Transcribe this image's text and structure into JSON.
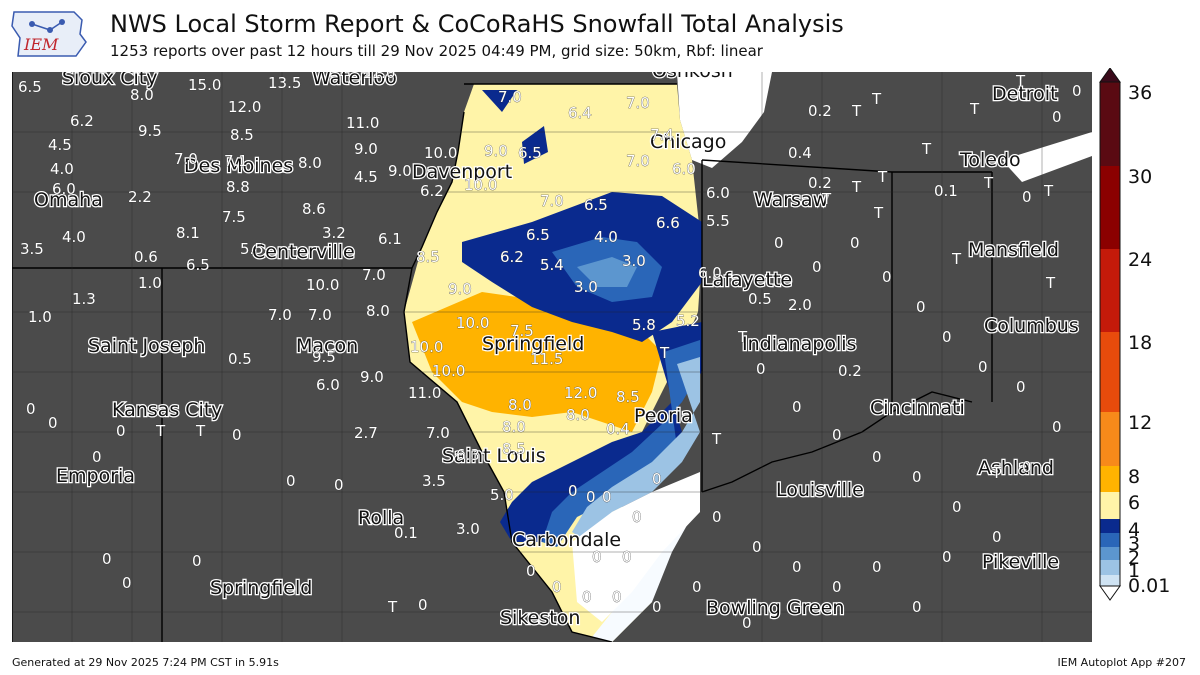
{
  "header": {
    "logo_text": "IEM",
    "title": "NWS Local Storm Report & CoCoRaHS Snowfall Total Analysis",
    "subtitle": "1253 reports over past 12 hours till 29 Nov 2025 04:49 PM, grid size: 50km, Rbf: linear"
  },
  "footer": {
    "generated": "Generated at 29 Nov 2025 7:24 PM CST in 5.91s",
    "app": "IEM Autoplot App #207"
  },
  "colorbar": {
    "ticks": [
      "36",
      "30",
      "24",
      "18",
      "12",
      "8",
      "6",
      "4",
      "3",
      "2",
      "1",
      "0.01"
    ],
    "colors": [
      "#3a0a1a",
      "#5a0a12",
      "#8b0000",
      "#c41a0a",
      "#e84b0c",
      "#f78a1a",
      "#ffb300",
      "#fff4a8",
      "#0a2a8e",
      "#2a66b8",
      "#5c96cf",
      "#9cc3e4",
      "#cfe3f3",
      "#f7fbff"
    ]
  },
  "map": {
    "cities": [
      "Sioux City",
      "Waterloo",
      "Oshkosh",
      "Detroit",
      "Omaha",
      "Des Moines",
      "Davenport",
      "Chicago",
      "Warsaw",
      "Toledo",
      "Centerville",
      "Mansfield",
      "Lafayette",
      "Saint Joseph",
      "Macon",
      "Springfield",
      "Indianapolis",
      "Columbus",
      "Kansas City",
      "Cincinnati",
      "Emporia",
      "Saint Louis",
      "Ashland",
      "Rolla",
      "Carbondale",
      "Louisville",
      "Pikeville",
      "Sikeston",
      "Bowling Green",
      "Springfield",
      "Peoria"
    ],
    "reports": [
      "6.5",
      "8.0",
      "15.0",
      "12.0",
      "13.5",
      "11.0",
      "6.2",
      "9.5",
      "8.5",
      "11.0",
      "4.5",
      "7.0",
      "7.1",
      "8.0",
      "9.0",
      "4.0",
      "6.0",
      "2.2",
      "8.8",
      "4.5",
      "9.0",
      "10.0",
      "9.0",
      "6.2",
      "10.0",
      "7.5",
      "8.6",
      "8.1",
      "3.2",
      "4.0",
      "3.5",
      "0.6",
      "6.5",
      "5.5",
      "6.1",
      "1.0",
      "8.5",
      "10.0",
      "7.0",
      "1.3",
      "7.0",
      "7.0",
      "8.0",
      "1.0",
      "9.0",
      "10.0",
      "7.5",
      "10.0",
      "0.5",
      "9.5",
      "6.0",
      "9.0",
      "10.0",
      "11.5",
      "11.0",
      "12.0",
      "8.5",
      "8.0",
      "8.0",
      "8.0",
      "2.7",
      "7.0",
      "6.3",
      "8.5",
      "3.5",
      "5.0",
      "0.1",
      "3.0",
      "7.0",
      "6.4",
      "7.0",
      "7.4",
      "6.5",
      "7.0",
      "6.0",
      "7.0",
      "6.5",
      "6.6",
      "6.5",
      "4.0",
      "6.2",
      "5.4",
      "3.0",
      "3.0",
      "5.5",
      "6.0",
      "6.0",
      "5.8",
      "5.2",
      "0.4",
      "0.2",
      "0.4",
      "0.2",
      "0.1",
      "0.5",
      "2.0",
      "0.2",
      "T",
      "0"
    ]
  }
}
